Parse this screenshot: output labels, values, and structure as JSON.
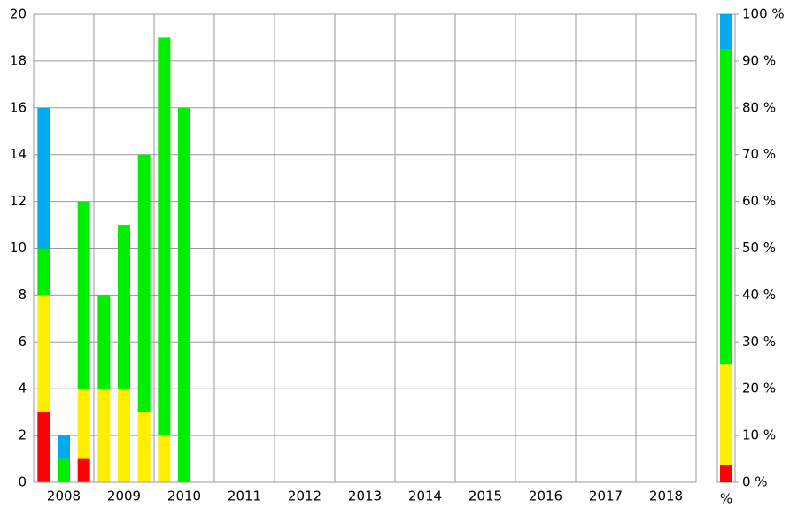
{
  "chart_data": [
    {
      "type": "stacked_bar",
      "categories": [
        null,
        "2008",
        null,
        null,
        "2009",
        null,
        null,
        "2010",
        null,
        null,
        "2011",
        null,
        null,
        "2012",
        null,
        null,
        "2013",
        null,
        null,
        "2014",
        null,
        null,
        "2015",
        null,
        null,
        "2016",
        null,
        null,
        "2017",
        null,
        null,
        "2018",
        null
      ],
      "series": [
        {
          "color": "#ff0000",
          "values": [
            3,
            0,
            1,
            0,
            0,
            0,
            0,
            0,
            null,
            null,
            null,
            null,
            null,
            null,
            null,
            null,
            null,
            null,
            null,
            null,
            null,
            null,
            null,
            null,
            null,
            null,
            null,
            null,
            null,
            null,
            null,
            null,
            null
          ]
        },
        {
          "color": "#ffee00",
          "values": [
            5,
            0,
            3,
            4,
            4,
            3,
            2,
            0,
            null,
            null,
            null,
            null,
            null,
            null,
            null,
            null,
            null,
            null,
            null,
            null,
            null,
            null,
            null,
            null,
            null,
            null,
            null,
            null,
            null,
            null,
            null,
            null,
            null
          ]
        },
        {
          "color": "#00ee00",
          "values": [
            2,
            1,
            8,
            4,
            7,
            11,
            17,
            16,
            null,
            null,
            null,
            null,
            null,
            null,
            null,
            null,
            null,
            null,
            null,
            null,
            null,
            null,
            null,
            null,
            null,
            null,
            null,
            null,
            null,
            null,
            null,
            null,
            null
          ]
        },
        {
          "color": "#00aaee",
          "values": [
            6,
            1,
            0,
            0,
            0,
            0,
            0,
            0,
            null,
            null,
            null,
            null,
            null,
            null,
            null,
            null,
            null,
            null,
            null,
            null,
            null,
            null,
            null,
            null,
            null,
            null,
            null,
            null,
            null,
            null,
            null,
            null,
            null
          ]
        }
      ],
      "ylim": [
        0,
        20
      ],
      "yticks": [
        0,
        2,
        4,
        6,
        8,
        10,
        12,
        14,
        16,
        18,
        20
      ],
      "grid": true
    },
    {
      "type": "percent_bar",
      "ylabel": "%",
      "series": [
        {
          "color": "#ff0000",
          "values": [
            3.8
          ]
        },
        {
          "color": "#ffee00",
          "values": [
            21.5
          ]
        },
        {
          "color": "#00ee00",
          "values": [
            67.2
          ]
        },
        {
          "color": "#00aaee",
          "values": [
            7.5
          ]
        }
      ],
      "ylim": [
        0,
        100
      ],
      "yticks": [
        {
          "value": 0,
          "label": "0 %"
        },
        {
          "value": 10,
          "label": "10 %"
        },
        {
          "value": 20,
          "label": "20 %"
        },
        {
          "value": 30,
          "label": "30 %"
        },
        {
          "value": 40,
          "label": "40 %"
        },
        {
          "value": 50,
          "label": "50 %"
        },
        {
          "value": 60,
          "label": "60 %"
        },
        {
          "value": 70,
          "label": "70 %"
        },
        {
          "value": 80,
          "label": "80 %"
        },
        {
          "value": 90,
          "label": "90 %"
        },
        {
          "value": 100,
          "label": "100 %"
        }
      ]
    }
  ]
}
